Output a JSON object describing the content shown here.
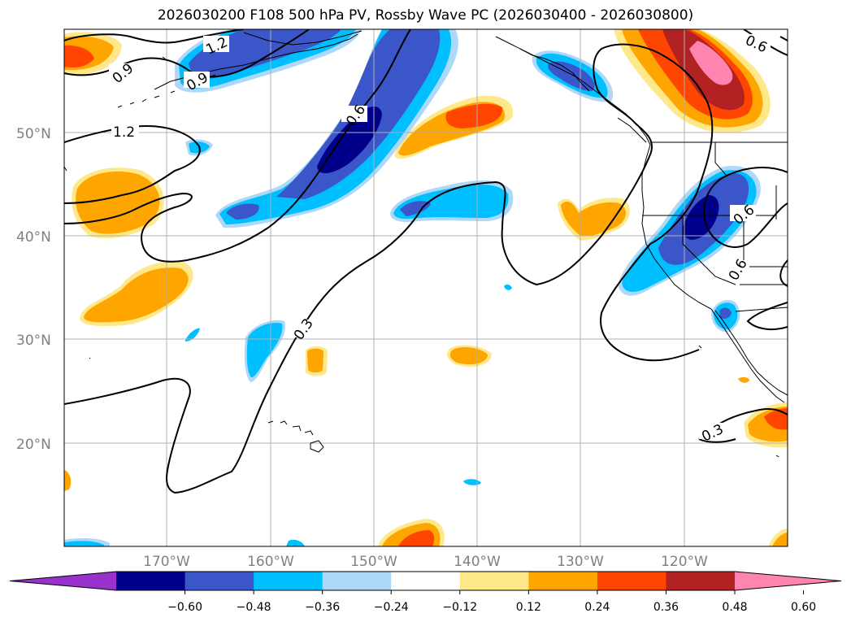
{
  "title": "2026030200 F108 500 hPa PV, Rossby Wave PC (2026030400 - 2026030800)",
  "map": {
    "lat_ticks": [
      "50°N",
      "40°N",
      "30°N",
      "20°N"
    ],
    "lon_ticks": [
      "170°W",
      "160°W",
      "150°W",
      "140°W",
      "130°W",
      "120°W"
    ],
    "contour_labels": [
      "1.2",
      "0.9",
      "1.2",
      "0.9",
      "0.6",
      "0.3",
      "0.6",
      "0.6",
      "0.3",
      "0.6"
    ]
  },
  "colorbar": {
    "colors": [
      "#9932cc",
      "#00008b",
      "#3a56c9",
      "#00bfff",
      "#add8f7",
      "#ffffff",
      "#ffe88a",
      "#ffa500",
      "#ff4500",
      "#b22222",
      "#ff85b0"
    ],
    "tick_labels": [
      "−0.60",
      "−0.48",
      "−0.36",
      "−0.24",
      "−0.12",
      "0.12",
      "0.24",
      "0.36",
      "0.48",
      "0.60"
    ]
  }
}
